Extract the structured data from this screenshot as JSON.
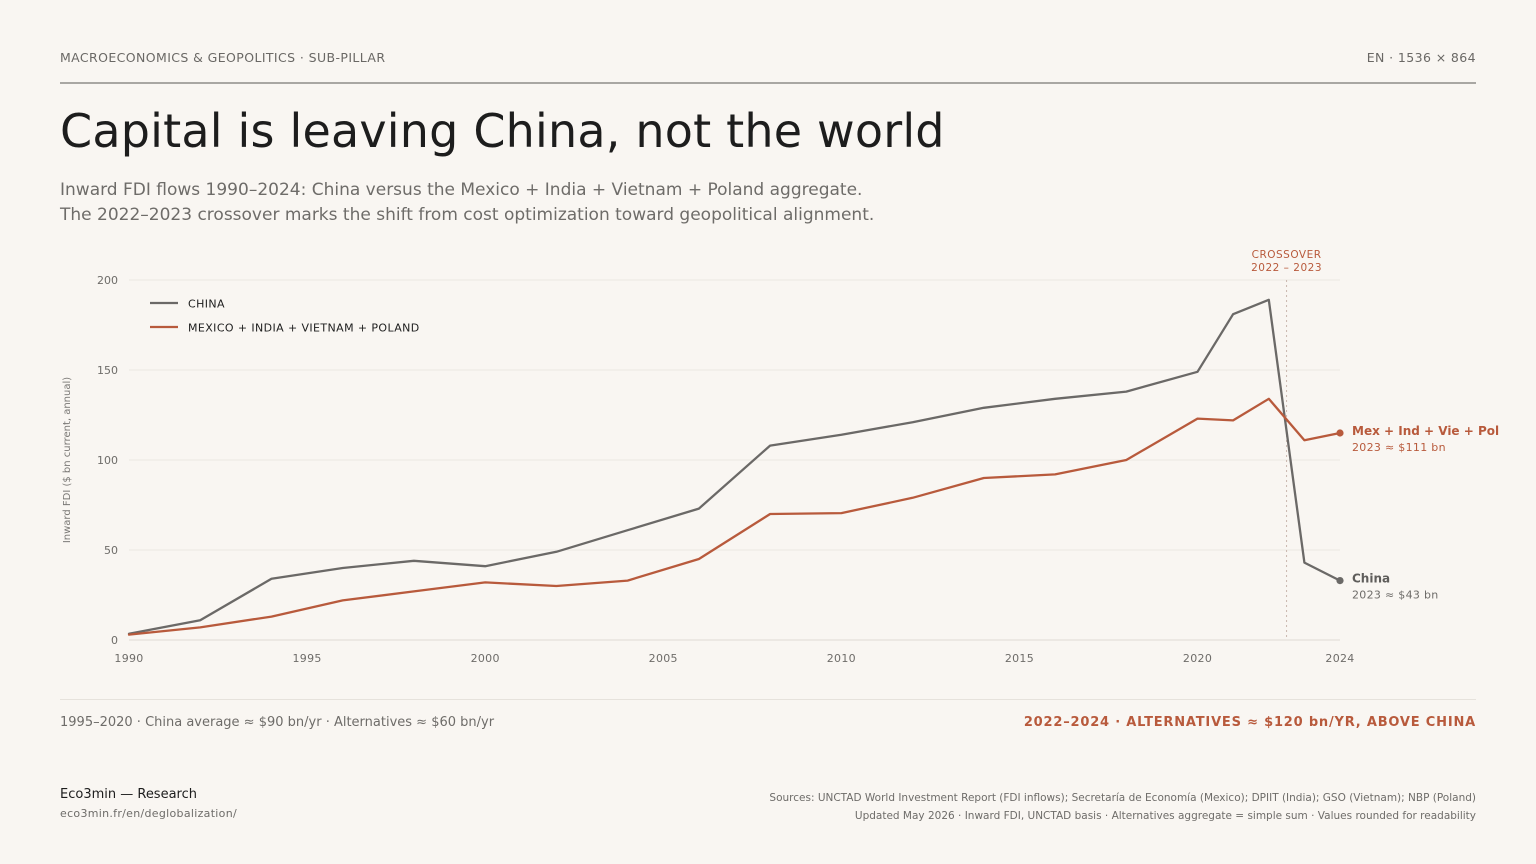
{
  "header": {
    "kicker": "MACROECONOMICS & GEOPOLITICS · SUB-PILLAR",
    "meta": "EN · 1536 × 864"
  },
  "title": "Capital is leaving China, not the world",
  "subtitle": {
    "line1": "Inward FDI flows 1990–2024: China versus the Mexico + India + Vietnam + Poland aggregate.",
    "line2": "The 2022–2023 crossover marks the shift from cost optimization toward geopolitical alignment."
  },
  "chart_data": {
    "type": "line",
    "ylabel": "Inward FDI ($ bn current, annual)",
    "xlim": [
      1990,
      2024
    ],
    "ylim": [
      0,
      200
    ],
    "x_ticks": [
      1990,
      1995,
      2000,
      2005,
      2010,
      2015,
      2020,
      2024
    ],
    "y_ticks": [
      0,
      50,
      100,
      150,
      200
    ],
    "grid": "horizontal",
    "legend_position": "top-left",
    "series": [
      {
        "name": "CHINA",
        "color": "#6b6967",
        "end_label": "China",
        "end_value_label": "2023 ≈ $43 bn",
        "points": [
          [
            1990,
            3.5
          ],
          [
            1992,
            11
          ],
          [
            1994,
            34
          ],
          [
            1996,
            40
          ],
          [
            1998,
            44
          ],
          [
            2000,
            41
          ],
          [
            2002,
            49
          ],
          [
            2004,
            61
          ],
          [
            2006,
            73
          ],
          [
            2008,
            108
          ],
          [
            2010,
            114
          ],
          [
            2012,
            121
          ],
          [
            2014,
            129
          ],
          [
            2016,
            134
          ],
          [
            2018,
            138
          ],
          [
            2020,
            149
          ],
          [
            2021,
            181
          ],
          [
            2022,
            189
          ],
          [
            2023,
            43
          ],
          [
            2024,
            33
          ]
        ]
      },
      {
        "name": "MEXICO + INDIA + VIETNAM + POLAND",
        "color": "#b85a3c",
        "end_label": "Mex + Ind + Vie + Pol",
        "end_value_label": "2023 ≈ $111 bn",
        "points": [
          [
            1990,
            3
          ],
          [
            1992,
            7
          ],
          [
            1994,
            13
          ],
          [
            1996,
            22
          ],
          [
            1998,
            27
          ],
          [
            2000,
            32
          ],
          [
            2002,
            30
          ],
          [
            2004,
            33
          ],
          [
            2006,
            45
          ],
          [
            2008,
            70
          ],
          [
            2010,
            70.5
          ],
          [
            2012,
            79
          ],
          [
            2014,
            90
          ],
          [
            2016,
            92
          ],
          [
            2018,
            100
          ],
          [
            2020,
            123
          ],
          [
            2021,
            122
          ],
          [
            2022,
            134
          ],
          [
            2023,
            111
          ],
          [
            2024,
            115
          ]
        ]
      }
    ],
    "annotation": {
      "x": 2022.5,
      "line1": "CROSSOVER",
      "line2": "2022 – 2023"
    }
  },
  "footer": {
    "stat_left": "1995–2020 · China average ≈ $90 bn/yr · Alternatives ≈ $60 bn/yr",
    "stat_right": "2022–2024 · ALTERNATIVES ≈ $120 bn/YR, ABOVE CHINA",
    "brand": "Eco3min — Research",
    "brand_url": "eco3min.fr/en/deglobalization/",
    "sources_line1": "Sources: UNCTAD World Investment Report (FDI inflows); Secretaría de Economía (Mexico); DPIIT (India); GSO (Vietnam); NBP (Poland)",
    "sources_line2": "Updated May 2026 · Inward FDI, UNCTAD basis · Alternatives aggregate = simple sum · Values rounded for readability"
  }
}
